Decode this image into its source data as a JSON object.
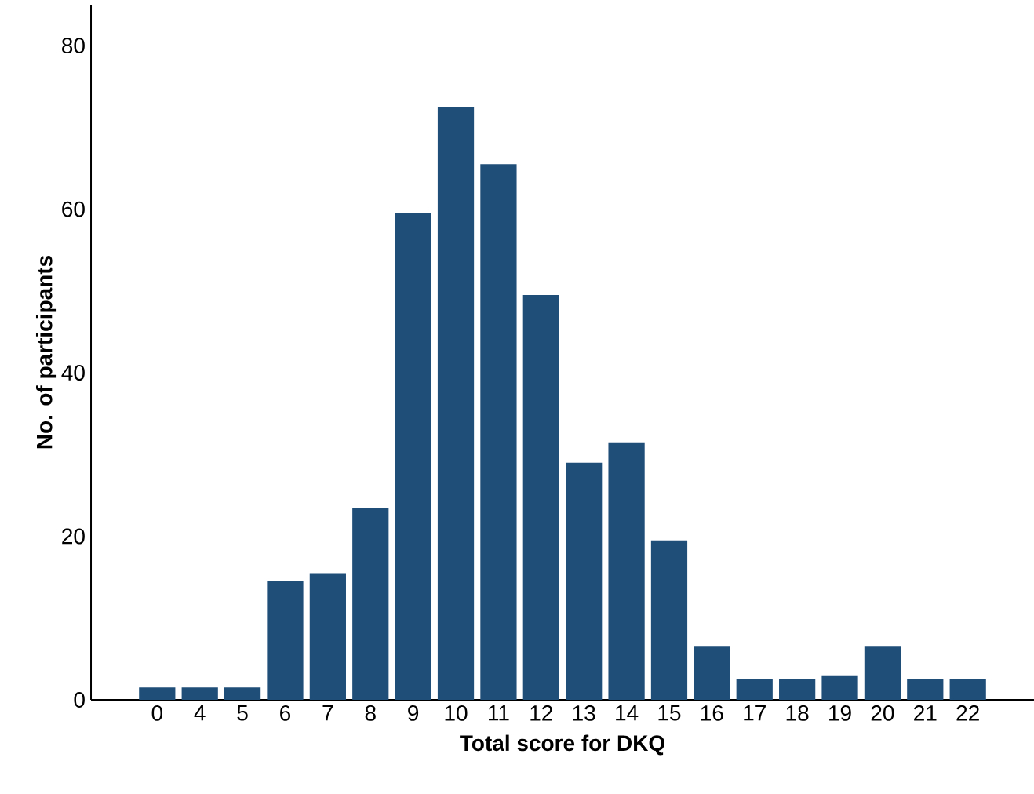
{
  "chart_data": {
    "type": "bar",
    "xlabel": "Total score for DKQ",
    "ylabel": "No. of participants",
    "categories": [
      "0",
      "4",
      "5",
      "6",
      "7",
      "8",
      "9",
      "10",
      "11",
      "12",
      "13",
      "14",
      "15",
      "16",
      "17",
      "18",
      "19",
      "20",
      "21",
      "22"
    ],
    "values": [
      1.5,
      1.5,
      1.5,
      14.5,
      15.5,
      23.5,
      59.5,
      72.5,
      65.5,
      49.5,
      29,
      31.5,
      19.5,
      6.5,
      2.5,
      2.5,
      3,
      6.5,
      2.5,
      2.5
    ],
    "color": "#1f4e79",
    "ylim": [
      0,
      85
    ],
    "yticks": [
      0,
      20,
      40,
      60,
      80
    ],
    "grid": false
  }
}
